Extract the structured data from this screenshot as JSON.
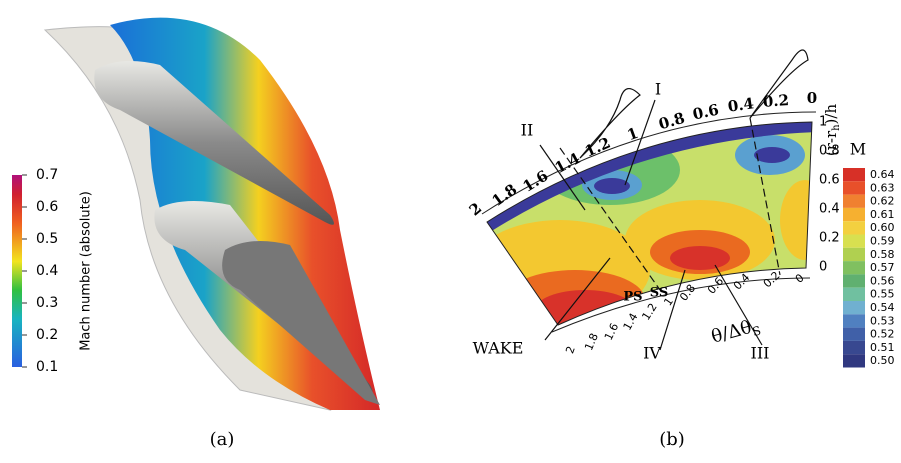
{
  "panels": [
    {
      "caption": "(a)",
      "colorbar": {
        "label": "Mach number (absolute)",
        "ticks": [
          "0.7",
          "0.6",
          "0.5",
          "0.4",
          "0.3",
          "0.2",
          "0.1"
        ]
      }
    },
    {
      "caption": "(b)",
      "legend": {
        "title": "M",
        "ticks": [
          "0.64",
          "0.63",
          "0.62",
          "0.61",
          "0.60",
          "0.59",
          "0.58",
          "0.57",
          "0.56",
          "0.55",
          "0.54",
          "0.53",
          "0.52",
          "0.51",
          "0.50"
        ]
      },
      "top_axis": [
        "2",
        "1.8",
        "1.6",
        "1.4",
        "1.2",
        "1",
        "0.8",
        "0.6",
        "0.4",
        "0.2",
        "0"
      ],
      "radial_axis": {
        "label": "(r-r",
        "label_sub": "h",
        "label_end": ")/h",
        "ticks": [
          "1",
          "0.8",
          "0.6",
          "0.4",
          "0.2",
          "0"
        ]
      },
      "bottom_axis": [
        "2",
        "1.8",
        "1.6",
        "1.4",
        "1.2",
        "1",
        "0.8",
        "0.6",
        "0.4",
        "0.2",
        "0"
      ],
      "bottom_axis_label": {
        "text": "θ/Δθ",
        "sub": "S"
      },
      "annotations": [
        "I",
        "II",
        "III",
        "IV",
        "WAKE",
        "PS",
        "SS"
      ]
    }
  ]
}
